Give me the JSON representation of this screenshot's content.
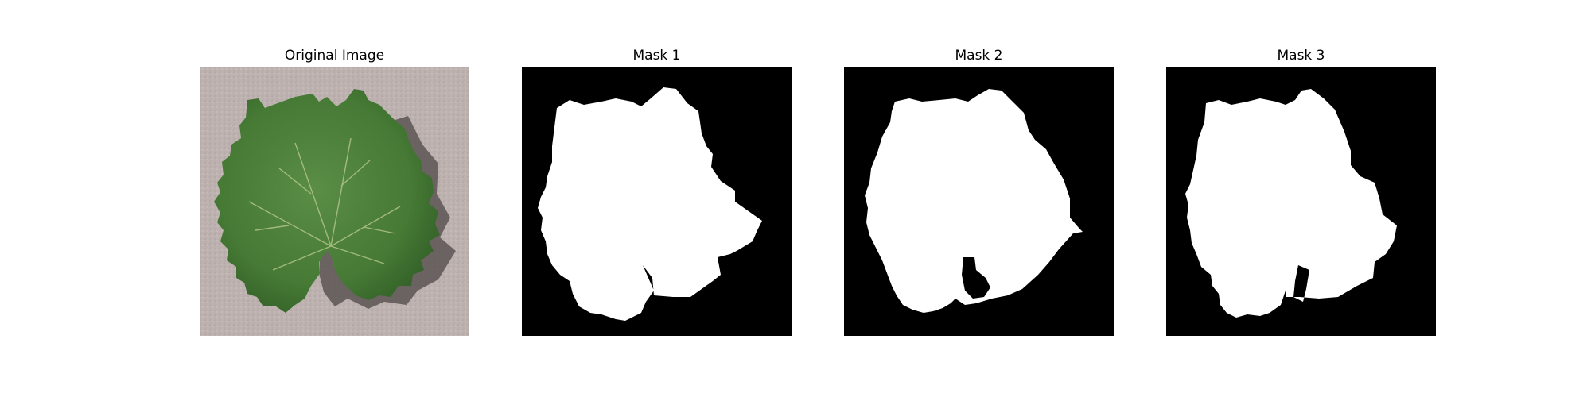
{
  "figure": {
    "panels": [
      {
        "title": "Original Image",
        "subject": "green grape leaf on grey concrete"
      },
      {
        "title": "Mask 1",
        "subject": "binary segmentation mask, white leaf on black"
      },
      {
        "title": "Mask 2",
        "subject": "binary segmentation mask, white leaf on black"
      },
      {
        "title": "Mask 3",
        "subject": "binary segmentation mask, white leaf on black"
      }
    ]
  },
  "colors": {
    "background": "#ffffff",
    "concrete": "#bdb2b0",
    "leaf": "#4a7f3a",
    "leaf_dark": "#356229",
    "vein": "#b8c98a",
    "shadow": "#5d5553",
    "mask_background": "#000000",
    "mask_foreground": "#ffffff"
  }
}
